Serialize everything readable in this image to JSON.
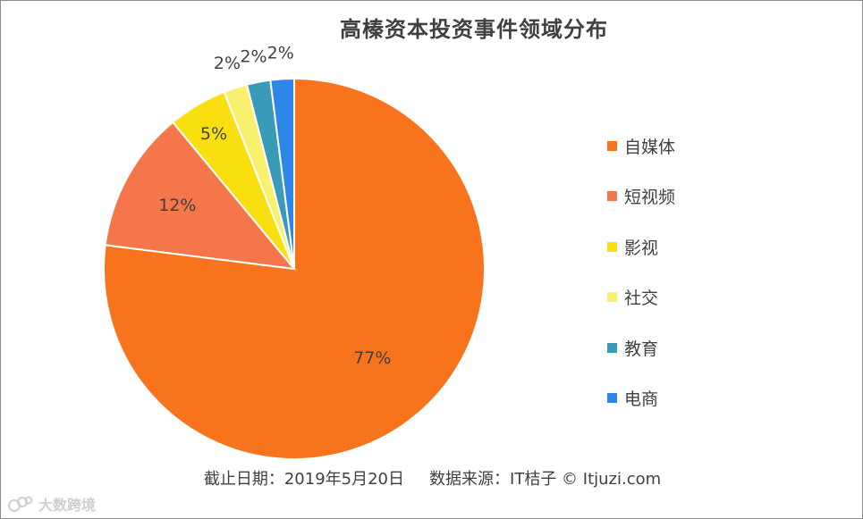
{
  "chart_data": {
    "type": "pie",
    "title": "高榛资本投资事件领域分布",
    "categories": [
      "自媒体",
      "短视频",
      "影视",
      "社交",
      "教育",
      "电商"
    ],
    "values": [
      77,
      12,
      5,
      2,
      2,
      2
    ],
    "labels": [
      "77%",
      "12%",
      "5%",
      "2%",
      "2%",
      "2%"
    ],
    "colors": [
      "#F7731C",
      "#F4764A",
      "#F9DF10",
      "#F9F16E",
      "#3A9BB8",
      "#2E86E8"
    ],
    "legend_position": "right",
    "start_angle": "12 o'clock, clockwise"
  },
  "footer": {
    "date_text": "截止日期：2019年5月20日",
    "source_text": "数据来源：IT桔子 © Itjuzi.com"
  },
  "watermark": {
    "text": "大数跨境",
    "icon": "watermark-logo-icon"
  }
}
